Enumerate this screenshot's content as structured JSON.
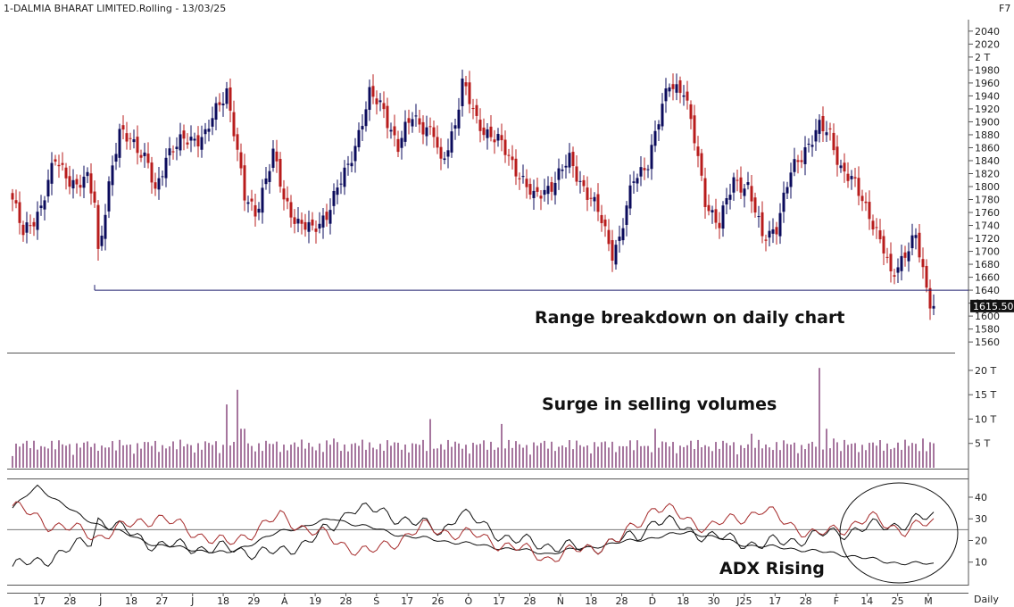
{
  "header": {
    "title": "1-DALMIA BHARAT LIMITED.Rolling - 13/03/25",
    "shortcut": "F7"
  },
  "footer": {
    "period": "Daily"
  },
  "chart_data": {
    "type": "candlestick",
    "price_panel": {
      "y_ticks": [
        "2040",
        "2020",
        "2 T",
        "1980",
        "1960",
        "1940",
        "1920",
        "1900",
        "1880",
        "1860",
        "1840",
        "1820",
        "1800",
        "1780",
        "1760",
        "1740",
        "1720",
        "1700",
        "1680",
        "1660",
        "1640",
        "1620",
        "1600",
        "1580",
        "1560"
      ],
      "ylim": [
        1545,
        2055
      ],
      "last_price_label": "1615.50",
      "last_price": 1615.5,
      "support_level": 1640,
      "annotation": "Range breakdown on daily chart",
      "colors": {
        "up": "#0b0b5c",
        "down": "#b81c1c",
        "support": "#1c1c6e"
      }
    },
    "volume_panel": {
      "y_ticks": [
        "20 T",
        "15 T",
        "10 T",
        "5 T"
      ],
      "ylim": [
        0,
        22
      ],
      "annotation": "Surge in selling volumes",
      "color": "#6b1a5e"
    },
    "adx_panel": {
      "y_ticks": [
        "40",
        "30",
        "20",
        "10"
      ],
      "ylim": [
        0,
        47
      ],
      "reference_level": 25,
      "annotation": "ADX Rising",
      "series": [
        {
          "key": "adx",
          "color": "#111111"
        },
        {
          "key": "plus_di",
          "color": "#111111"
        },
        {
          "key": "minus_di",
          "color": "#a52a2a"
        }
      ]
    },
    "x_tick_labels": [
      "17",
      "28",
      "J",
      "18",
      "27",
      "J",
      "18",
      "29",
      "A",
      "19",
      "28",
      "S",
      "17",
      "26",
      "O",
      "17",
      "28",
      "N",
      "18",
      "28",
      "D",
      "18",
      "30",
      "J25",
      "17",
      "28",
      "F",
      "14",
      "25",
      "M"
    ]
  }
}
